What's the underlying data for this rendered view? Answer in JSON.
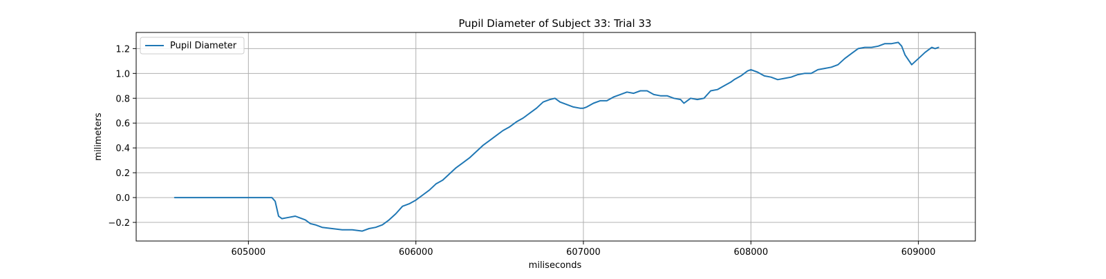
{
  "chart_data": {
    "type": "line",
    "title": "Pupil Diameter of Subject 33: Trial 33",
    "xlabel": "miliseconds",
    "ylabel": "milimeters",
    "xlim": [
      604330,
      609340
    ],
    "ylim": [
      -0.35,
      1.33
    ],
    "xticks": [
      605000,
      606000,
      607000,
      608000,
      609000
    ],
    "yticks": [
      -0.2,
      0.0,
      0.2,
      0.4,
      0.6,
      0.8,
      1.0,
      1.2
    ],
    "ytick_labels": [
      "−0.2",
      "0.0",
      "0.2",
      "0.4",
      "0.6",
      "0.8",
      "1.0",
      "1.2"
    ],
    "grid": true,
    "legend": {
      "position": "top-left",
      "entries": [
        "Pupil Diameter"
      ]
    },
    "colors": {
      "series": "#1f77b4",
      "grid": "#b0b0b0"
    },
    "series": [
      {
        "name": "Pupil Diameter",
        "x": [
          604560,
          604800,
          605000,
          605140,
          605160,
          605180,
          605200,
          605240,
          605280,
          605300,
          605340,
          605370,
          605400,
          605440,
          605500,
          605560,
          605620,
          605680,
          605720,
          605760,
          605800,
          605840,
          605880,
          605920,
          605960,
          606000,
          606040,
          606080,
          606120,
          606160,
          606200,
          606240,
          606280,
          606320,
          606360,
          606400,
          606440,
          606480,
          606520,
          606560,
          606600,
          606640,
          606680,
          606720,
          606760,
          606800,
          606830,
          606860,
          606900,
          606940,
          606980,
          607000,
          607020,
          607060,
          607100,
          607140,
          607180,
          607220,
          607260,
          607300,
          607340,
          607380,
          607420,
          607460,
          607500,
          607540,
          607580,
          607600,
          607620,
          607640,
          607680,
          607720,
          607760,
          607800,
          607840,
          607880,
          607900,
          607940,
          607980,
          608000,
          608040,
          608080,
          608120,
          608160,
          608200,
          608240,
          608280,
          608320,
          608360,
          608400,
          608440,
          608480,
          608520,
          608560,
          608600,
          608640,
          608680,
          608720,
          608760,
          608800,
          608840,
          608880,
          608900,
          608920,
          608960,
          609000,
          609040,
          609080,
          609100,
          609120
        ],
        "y": [
          0.0,
          0.0,
          0.0,
          0.0,
          -0.03,
          -0.15,
          -0.17,
          -0.16,
          -0.15,
          -0.16,
          -0.18,
          -0.21,
          -0.22,
          -0.24,
          -0.25,
          -0.26,
          -0.26,
          -0.27,
          -0.25,
          -0.24,
          -0.22,
          -0.18,
          -0.13,
          -0.07,
          -0.05,
          -0.02,
          0.02,
          0.06,
          0.11,
          0.14,
          0.19,
          0.24,
          0.28,
          0.32,
          0.37,
          0.42,
          0.46,
          0.5,
          0.54,
          0.57,
          0.61,
          0.64,
          0.68,
          0.72,
          0.77,
          0.79,
          0.8,
          0.77,
          0.75,
          0.73,
          0.72,
          0.72,
          0.73,
          0.76,
          0.78,
          0.78,
          0.81,
          0.83,
          0.85,
          0.84,
          0.86,
          0.86,
          0.83,
          0.82,
          0.82,
          0.8,
          0.79,
          0.76,
          0.78,
          0.8,
          0.79,
          0.8,
          0.86,
          0.87,
          0.9,
          0.93,
          0.95,
          0.98,
          1.02,
          1.03,
          1.01,
          0.98,
          0.97,
          0.95,
          0.96,
          0.97,
          0.99,
          1.0,
          1.0,
          1.03,
          1.04,
          1.05,
          1.07,
          1.12,
          1.16,
          1.2,
          1.21,
          1.21,
          1.22,
          1.24,
          1.24,
          1.25,
          1.22,
          1.15,
          1.07,
          1.12,
          1.17,
          1.21,
          1.2,
          1.21
        ]
      }
    ]
  }
}
